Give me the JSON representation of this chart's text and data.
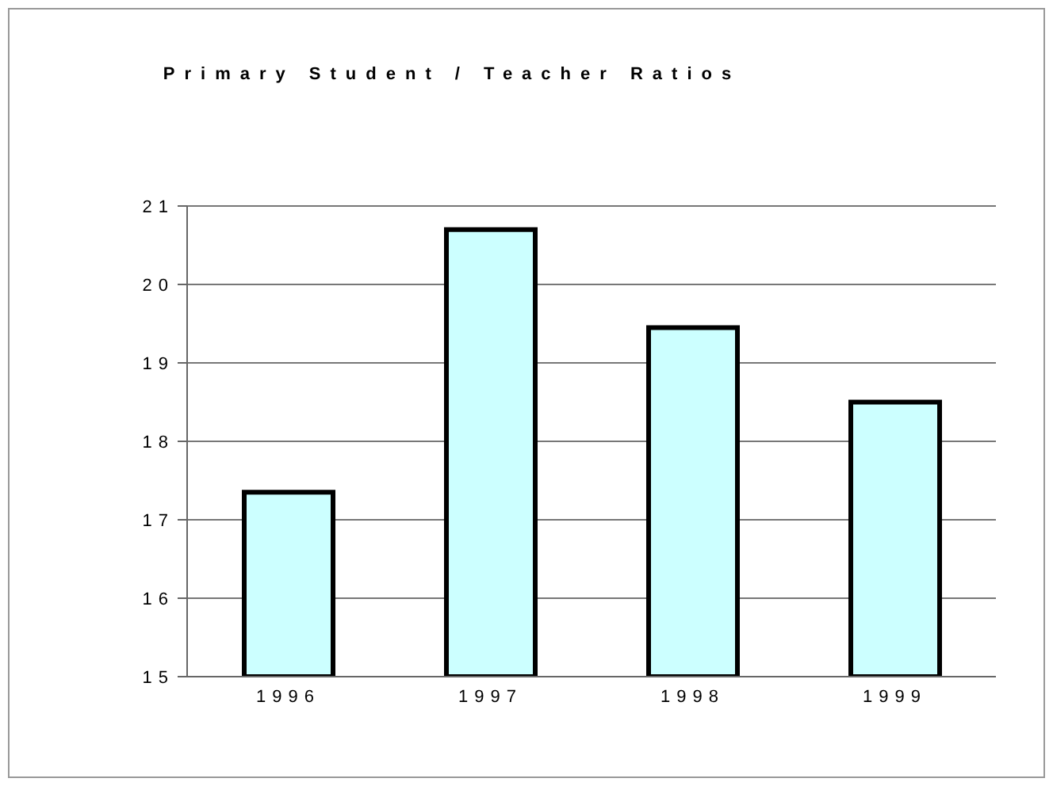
{
  "chart_data": {
    "type": "bar",
    "title": "Primary Student / Teacher Ratios",
    "categories": [
      "1996",
      "1997",
      "1998",
      "1999"
    ],
    "values": [
      17.35,
      20.7,
      19.45,
      18.5
    ],
    "color": "#ccffff",
    "ylim": [
      15,
      21
    ],
    "yticks": [
      15,
      16,
      17,
      18,
      19,
      20,
      21
    ],
    "grid": true
  }
}
